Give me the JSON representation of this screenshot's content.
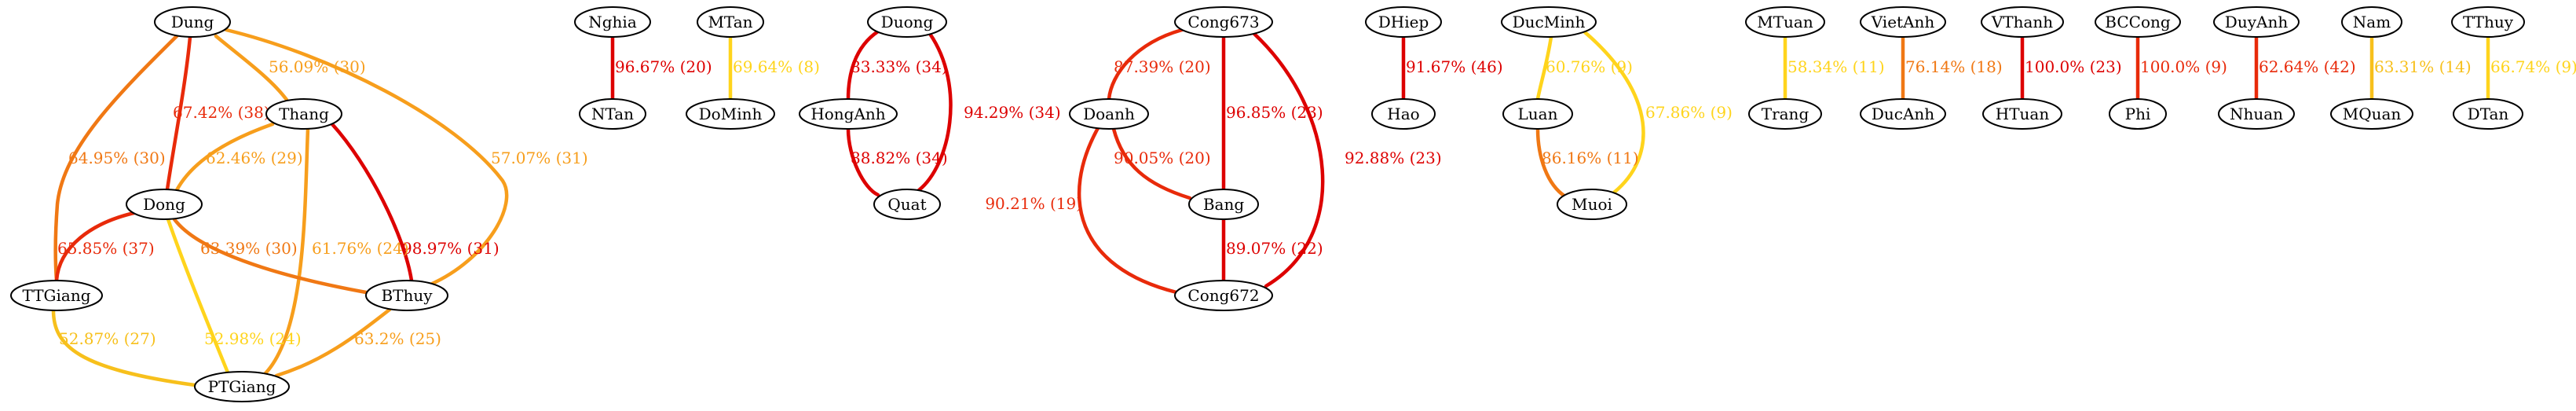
{
  "palette": {
    "red": "#dd0000",
    "red_orange": "#e82a0a",
    "orange": "#f07814",
    "amber": "#f79e1c",
    "yellow": "#ffd41c"
  },
  "nodes": [
    {
      "id": "Dung",
      "label": "Dung"
    },
    {
      "id": "Thang",
      "label": "Thang"
    },
    {
      "id": "Dong",
      "label": "Dong"
    },
    {
      "id": "TTGiang",
      "label": "TTGiang"
    },
    {
      "id": "BThuy",
      "label": "BThuy"
    },
    {
      "id": "PTGiang",
      "label": "PTGiang"
    },
    {
      "id": "Nghia",
      "label": "Nghia"
    },
    {
      "id": "NTan",
      "label": "NTan"
    },
    {
      "id": "MTan",
      "label": "MTan"
    },
    {
      "id": "DoMinh",
      "label": "DoMinh"
    },
    {
      "id": "Duong",
      "label": "Duong"
    },
    {
      "id": "HongAnh",
      "label": "HongAnh"
    },
    {
      "id": "Quat",
      "label": "Quat"
    },
    {
      "id": "Cong673",
      "label": "Cong673"
    },
    {
      "id": "Doanh",
      "label": "Doanh"
    },
    {
      "id": "Bang",
      "label": "Bang"
    },
    {
      "id": "Cong672",
      "label": "Cong672"
    },
    {
      "id": "DHiep",
      "label": "DHiep"
    },
    {
      "id": "Hao",
      "label": "Hao"
    },
    {
      "id": "DucMinh",
      "label": "DucMinh"
    },
    {
      "id": "Luan",
      "label": "Luan"
    },
    {
      "id": "Muoi",
      "label": "Muoi"
    },
    {
      "id": "MTuan",
      "label": "MTuan"
    },
    {
      "id": "Trang",
      "label": "Trang"
    },
    {
      "id": "VietAnh",
      "label": "VietAnh"
    },
    {
      "id": "DucAnh",
      "label": "DucAnh"
    },
    {
      "id": "VThanh",
      "label": "VThanh"
    },
    {
      "id": "HTuan",
      "label": "HTuan"
    },
    {
      "id": "BCCong",
      "label": "BCCong"
    },
    {
      "id": "Phi",
      "label": "Phi"
    },
    {
      "id": "DuyAnh",
      "label": "DuyAnh"
    },
    {
      "id": "Nhuan",
      "label": "Nhuan"
    },
    {
      "id": "Nam",
      "label": "Nam"
    },
    {
      "id": "MQuan",
      "label": "MQuan"
    },
    {
      "id": "TThuy",
      "label": "TThuy"
    },
    {
      "id": "DTan",
      "label": "DTan"
    }
  ],
  "edges": [
    {
      "id": "Dung-Thang",
      "from": "Dung",
      "to": "Thang",
      "label": "56.09% (30)",
      "color": "#f79e1c"
    },
    {
      "id": "Dung-Dong",
      "from": "Dung",
      "to": "Dong",
      "label": "67.42% (38)",
      "color": "#e82a0a"
    },
    {
      "id": "Dung-TTGiang",
      "from": "Dung",
      "to": "TTGiang",
      "label": "64.95% (30)",
      "color": "#f07814"
    },
    {
      "id": "Dung-BThuy",
      "from": "Dung",
      "to": "BThuy",
      "label": "57.07% (31)",
      "color": "#f79e1c"
    },
    {
      "id": "Thang-Dong",
      "from": "Thang",
      "to": "Dong",
      "label": "62.46% (29)",
      "color": "#f79e1c"
    },
    {
      "id": "Thang-BThuy",
      "from": "Thang",
      "to": "BThuy",
      "label": "98.97% (31)",
      "color": "#dd0000"
    },
    {
      "id": "Thang-PTGiang",
      "from": "Thang",
      "to": "PTGiang",
      "label": "61.76% (24)",
      "color": "#f79e1c"
    },
    {
      "id": "Dong-TTGiang",
      "from": "Dong",
      "to": "TTGiang",
      "label": "65.85% (37)",
      "color": "#e82a0a"
    },
    {
      "id": "Dong-BThuy",
      "from": "Dong",
      "to": "BThuy",
      "label": "63.39% (30)",
      "color": "#f07814"
    },
    {
      "id": "Dong-PTGiang",
      "from": "Dong",
      "to": "PTGiang",
      "label": "52.98% (24)",
      "color": "#ffd41c"
    },
    {
      "id": "TTGiang-PTGiang",
      "from": "TTGiang",
      "to": "PTGiang",
      "label": "52.87% (27)",
      "color": "#f7c01c"
    },
    {
      "id": "BThuy-PTGiang",
      "from": "BThuy",
      "to": "PTGiang",
      "label": "63.2% (25)",
      "color": "#f79e1c"
    },
    {
      "id": "Nghia-NTan",
      "from": "Nghia",
      "to": "NTan",
      "label": "96.67% (20)",
      "color": "#dd0000"
    },
    {
      "id": "MTan-DoMinh",
      "from": "MTan",
      "to": "DoMinh",
      "label": "69.64% (8)",
      "color": "#ffd41c"
    },
    {
      "id": "Duong-HongAnh",
      "from": "Duong",
      "to": "HongAnh",
      "label": "83.33% (34)",
      "color": "#dd0000"
    },
    {
      "id": "Duong-Quat",
      "from": "Duong",
      "to": "Quat",
      "label": "94.29% (34)",
      "color": "#dd0000"
    },
    {
      "id": "HongAnh-Quat",
      "from": "HongAnh",
      "to": "Quat",
      "label": "88.82% (34)",
      "color": "#dd0000"
    },
    {
      "id": "Cong673-Doanh",
      "from": "Cong673",
      "to": "Doanh",
      "label": "87.39% (20)",
      "color": "#e82a0a"
    },
    {
      "id": "Cong673-Bang",
      "from": "Cong673",
      "to": "Bang",
      "label": "96.85% (23)",
      "color": "#dd0000"
    },
    {
      "id": "Cong673-Cong672",
      "from": "Cong673",
      "to": "Cong672",
      "label": "92.88% (23)",
      "color": "#dd0000"
    },
    {
      "id": "Doanh-Bang",
      "from": "Doanh",
      "to": "Bang",
      "label": "90.05% (20)",
      "color": "#e82a0a"
    },
    {
      "id": "Doanh-Cong672",
      "from": "Doanh",
      "to": "Cong672",
      "label": "90.21% (19)",
      "color": "#e82a0a"
    },
    {
      "id": "Bang-Cong672",
      "from": "Bang",
      "to": "Cong672",
      "label": "89.07% (22)",
      "color": "#dd0000"
    },
    {
      "id": "DHiep-Hao",
      "from": "DHiep",
      "to": "Hao",
      "label": "91.67% (46)",
      "color": "#dd0000"
    },
    {
      "id": "DucMinh-Luan",
      "from": "DucMinh",
      "to": "Luan",
      "label": "60.76% (9)",
      "color": "#ffd41c"
    },
    {
      "id": "DucMinh-Muoi",
      "from": "DucMinh",
      "to": "Muoi",
      "label": "67.86% (9)",
      "color": "#ffd41c"
    },
    {
      "id": "Luan-Muoi",
      "from": "Luan",
      "to": "Muoi",
      "label": "86.16% (11)",
      "color": "#f07814"
    },
    {
      "id": "MTuan-Trang",
      "from": "MTuan",
      "to": "Trang",
      "label": "58.34% (11)",
      "color": "#ffd41c"
    },
    {
      "id": "VietAnh-DucAnh",
      "from": "VietAnh",
      "to": "DucAnh",
      "label": "76.14% (18)",
      "color": "#f07814"
    },
    {
      "id": "VThanh-HTuan",
      "from": "VThanh",
      "to": "HTuan",
      "label": "100.0% (23)",
      "color": "#dd0000"
    },
    {
      "id": "BCCong-Phi",
      "from": "BCCong",
      "to": "Phi",
      "label": "100.0% (9)",
      "color": "#e82a0a"
    },
    {
      "id": "DuyAnh-Nhuan",
      "from": "DuyAnh",
      "to": "Nhuan",
      "label": "62.64% (42)",
      "color": "#e82a0a"
    },
    {
      "id": "Nam-MQuan",
      "from": "Nam",
      "to": "MQuan",
      "label": "63.31% (14)",
      "color": "#f7c01c"
    },
    {
      "id": "TThuy-DTan",
      "from": "TThuy",
      "to": "DTan",
      "label": "66.74% (9)",
      "color": "#ffd41c"
    }
  ]
}
